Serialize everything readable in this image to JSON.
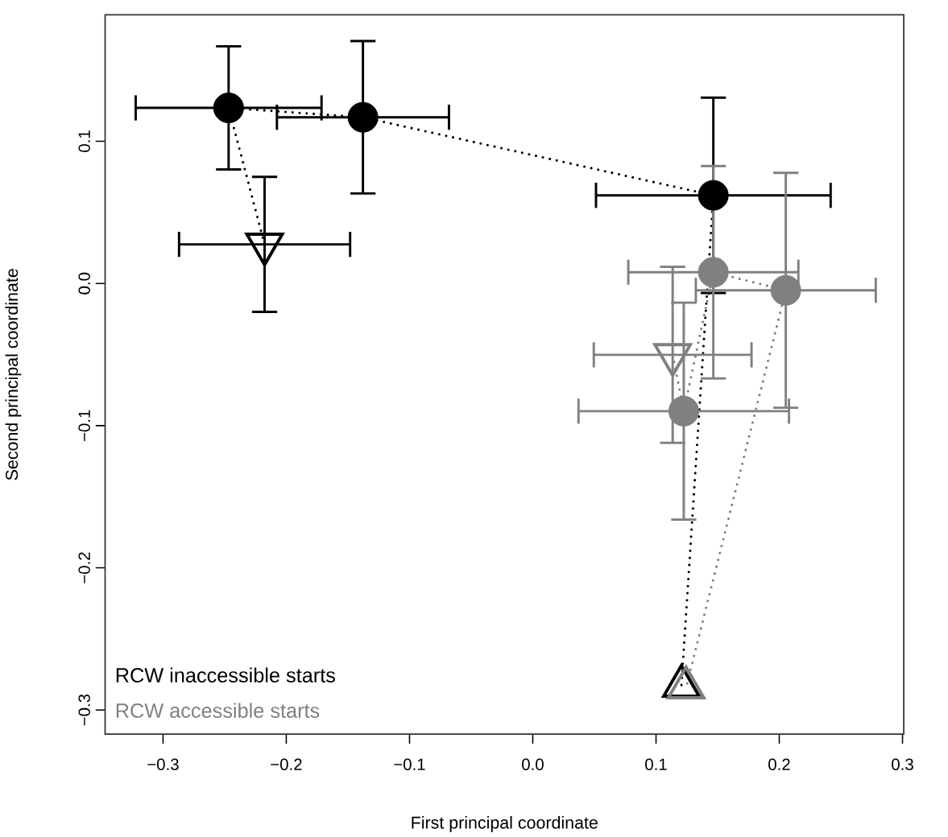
{
  "chart_data": {
    "type": "scatter",
    "xlabel": "First principal coordinate",
    "ylabel": "Second principal coordinate",
    "xlim": [
      -0.347,
      0.301
    ],
    "ylim": [
      -0.317,
      0.189
    ],
    "xticks": [
      {
        "value": -0.3,
        "label": "−0.3"
      },
      {
        "value": -0.2,
        "label": "−0.2"
      },
      {
        "value": -0.1,
        "label": "−0.1"
      },
      {
        "value": 0,
        "label": "0.0"
      },
      {
        "value": 0.1,
        "label": "0.1"
      },
      {
        "value": 0.2,
        "label": "0.2"
      },
      {
        "value": 0.3,
        "label": "0.3"
      }
    ],
    "yticks": [
      {
        "value": -0.3,
        "label": "−0.3"
      },
      {
        "value": -0.2,
        "label": "−0.2"
      },
      {
        "value": -0.1,
        "label": "−0.1"
      },
      {
        "value": 0,
        "label": "0.0"
      },
      {
        "value": 0.1,
        "label": "0.1"
      }
    ],
    "grid": false,
    "legend": "bottom left",
    "series": [
      {
        "type": "line",
        "color": "#000000",
        "line_style": "dotted",
        "marker": "none",
        "x": [
          -0.2176,
          -0.2468,
          -0.1378,
          0.1465,
          0.1206
        ],
        "values": [
          0.0275,
          0.1235,
          0.1169,
          0.062,
          -0.2831
        ]
      },
      {
        "type": "line",
        "color": "#808080",
        "line_style": "dotted",
        "marker": "none",
        "x": [
          0.1135,
          0.1225,
          0.1465,
          0.2053,
          0.1244
        ],
        "values": [
          -0.0502,
          -0.0898,
          0.0079,
          -0.0048,
          -0.2842
        ]
      },
      {
        "name": "RCW inaccessible starts",
        "color": "#000000",
        "marker": "circle",
        "x": [
          -0.2468,
          -0.1378,
          0.1465
        ],
        "values": [
          0.1235,
          0.1169,
          0.062
        ],
        "errors": [
          0.0433,
          0.0536,
          0.0687
        ],
        "xerrors": [
          0.0754,
          0.0698,
          0.0952
        ]
      },
      {
        "color": "#000000",
        "marker": "triangle_down",
        "x": [
          -0.2176
        ],
        "values": [
          0.0275
        ],
        "errors": [
          0.0475
        ],
        "xerrors": [
          0.0694
        ]
      },
      {
        "color": "#000000",
        "marker": "triangle",
        "x": [
          0.1206
        ],
        "values": [
          -0.2831
        ]
      },
      {
        "name": "RCW accessible starts",
        "color": "#808080",
        "marker": "circle",
        "x": [
          0.1465,
          0.2053,
          0.1225
        ],
        "values": [
          0.0079,
          -0.0048,
          -0.0898
        ],
        "errors": [
          0.0747,
          0.0826,
          0.0763
        ],
        "xerrors": [
          0.069,
          0.073,
          0.0854
        ]
      },
      {
        "color": "#808080",
        "marker": "triangle_down",
        "x": [
          0.1135
        ],
        "values": [
          -0.0502
        ],
        "errors": [
          0.0619
        ],
        "xerrors": [
          0.064
        ]
      },
      {
        "color": "#808080",
        "marker": "triangle",
        "x": [
          0.1244
        ],
        "values": [
          -0.2842
        ]
      }
    ]
  }
}
